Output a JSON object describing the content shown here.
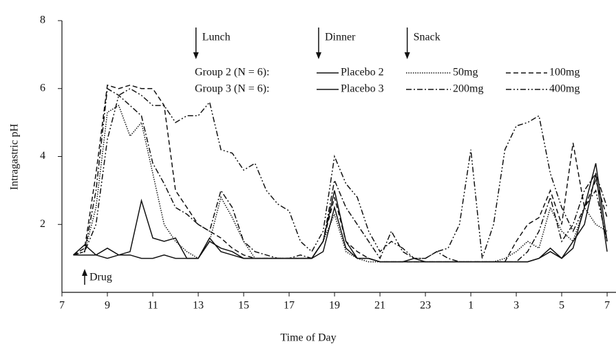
{
  "chart_data": {
    "type": "line",
    "xlabel": "Time of Day",
    "ylabel": "Intragastric pH",
    "xlim": [
      7,
      31.3
    ],
    "ylim": [
      0,
      8
    ],
    "xticks": [
      7,
      9,
      11,
      13,
      15,
      17,
      19,
      21,
      23,
      {
        "value": 25,
        "label": "1"
      },
      {
        "value": 27,
        "label": "3"
      },
      {
        "value": 29,
        "label": "5"
      },
      {
        "value": 31,
        "label": "7"
      }
    ],
    "yticks": [
      2,
      4,
      6,
      8
    ],
    "x": [
      7.5,
      8,
      8.5,
      9,
      9.5,
      10,
      10.5,
      11,
      11.5,
      12,
      12.5,
      13,
      13.5,
      14,
      14.5,
      15,
      15.5,
      16,
      16.5,
      17,
      17.5,
      18,
      18.5,
      19,
      19.5,
      20,
      20.5,
      21,
      21.5,
      22,
      22.5,
      23,
      23.5,
      24,
      24.5,
      25,
      25.5,
      26,
      26.5,
      27,
      27.5,
      28,
      28.5,
      29,
      29.5,
      30,
      30.5,
      31
    ],
    "legend_groups": [
      "Group 2 (N = 6):",
      "Group 3 (N = 6):"
    ],
    "series": [
      {
        "name": "Placebo 2",
        "color": "#111111",
        "dash": "solid",
        "values": [
          1.1,
          1.4,
          1.1,
          1.3,
          1.1,
          1.2,
          2.7,
          1.6,
          1.5,
          1.6,
          1.0,
          1.0,
          1.6,
          1.2,
          1.1,
          1.0,
          1.0,
          1.0,
          1.0,
          1.0,
          1.0,
          1.0,
          1.5,
          3.0,
          1.5,
          1.0,
          1.0,
          0.9,
          0.9,
          0.9,
          1.0,
          0.9,
          0.9,
          0.9,
          0.9,
          0.9,
          0.9,
          0.9,
          0.9,
          0.9,
          0.9,
          1.0,
          1.2,
          1.0,
          1.5,
          2.0,
          3.5,
          1.2
        ]
      },
      {
        "name": "50mg",
        "color": "#111111",
        "dash": "dotted",
        "values": [
          1.1,
          1.2,
          2.5,
          5.3,
          5.5,
          4.6,
          5.0,
          3.5,
          2.0,
          1.5,
          1.2,
          1.0,
          1.5,
          2.8,
          2.2,
          1.5,
          1.0,
          1.0,
          1.0,
          1.0,
          1.0,
          1.0,
          1.5,
          2.3,
          1.2,
          1.0,
          0.9,
          0.9,
          0.9,
          0.9,
          0.9,
          0.9,
          0.9,
          0.9,
          0.9,
          0.9,
          0.9,
          0.9,
          1.0,
          1.2,
          1.5,
          1.3,
          2.5,
          1.8,
          1.5,
          2.5,
          2.0,
          1.8
        ]
      },
      {
        "name": "100mg",
        "color": "#111111",
        "dash": "dashed",
        "values": [
          1.1,
          1.3,
          3.5,
          6.1,
          6.0,
          6.1,
          6.0,
          6.0,
          5.5,
          3.0,
          2.5,
          2.0,
          1.8,
          1.6,
          1.3,
          1.1,
          1.0,
          1.0,
          1.0,
          1.0,
          1.0,
          1.0,
          1.5,
          2.8,
          1.5,
          1.2,
          1.0,
          0.9,
          0.9,
          0.9,
          0.9,
          0.9,
          0.9,
          0.9,
          0.9,
          0.9,
          0.9,
          0.9,
          0.9,
          1.5,
          2.0,
          2.2,
          3.0,
          2.0,
          4.4,
          2.5,
          3.3,
          2.2
        ]
      },
      {
        "name": "Placebo 3",
        "color": "#111111",
        "dash": "solid",
        "values": [
          1.1,
          1.1,
          1.1,
          1.0,
          1.1,
          1.1,
          1.0,
          1.0,
          1.1,
          1.0,
          1.0,
          1.0,
          1.5,
          1.3,
          1.2,
          1.0,
          1.0,
          1.0,
          1.0,
          1.0,
          1.0,
          1.0,
          1.2,
          2.5,
          1.3,
          1.0,
          1.0,
          0.9,
          0.9,
          0.9,
          0.9,
          0.9,
          0.9,
          0.9,
          0.9,
          0.9,
          0.9,
          0.9,
          0.9,
          0.9,
          0.9,
          1.0,
          1.3,
          1.0,
          1.3,
          2.5,
          3.8,
          1.5
        ]
      },
      {
        "name": "200mg",
        "color": "#111111",
        "dash": "dashdot",
        "values": [
          1.1,
          1.2,
          3.0,
          6.0,
          5.8,
          5.5,
          5.2,
          3.8,
          3.2,
          2.5,
          2.3,
          2.0,
          1.8,
          3.0,
          2.5,
          1.5,
          1.2,
          1.1,
          1.0,
          1.0,
          1.1,
          1.0,
          1.5,
          3.3,
          2.5,
          2.0,
          1.5,
          1.0,
          1.8,
          1.2,
          1.0,
          1.0,
          1.2,
          1.0,
          0.9,
          0.9,
          0.9,
          0.9,
          0.9,
          0.9,
          1.2,
          1.8,
          2.8,
          1.5,
          2.0,
          3.0,
          3.5,
          2.5
        ]
      },
      {
        "name": "400mg",
        "color": "#111111",
        "dash": "dashdotdot",
        "values": [
          1.1,
          1.2,
          2.0,
          4.5,
          5.8,
          6.0,
          5.8,
          5.5,
          5.5,
          5.0,
          5.2,
          5.2,
          5.6,
          4.2,
          4.1,
          3.6,
          3.8,
          3.0,
          2.6,
          2.4,
          1.5,
          1.2,
          1.8,
          4.0,
          3.2,
          2.8,
          1.8,
          1.2,
          1.5,
          1.3,
          1.0,
          1.0,
          1.2,
          1.3,
          2.0,
          4.2,
          1.0,
          2.0,
          4.2,
          4.9,
          5.0,
          5.2,
          3.5,
          2.5,
          1.8,
          2.5,
          3.0,
          1.5
        ]
      }
    ],
    "annotations": [
      {
        "text": "Lunch",
        "x": 12.9,
        "direction": "down"
      },
      {
        "text": "Dinner",
        "x": 18.3,
        "direction": "down"
      },
      {
        "text": "Snack",
        "x": 22.2,
        "direction": "down"
      },
      {
        "text": "Drug",
        "x": 8.0,
        "direction": "up"
      }
    ]
  }
}
